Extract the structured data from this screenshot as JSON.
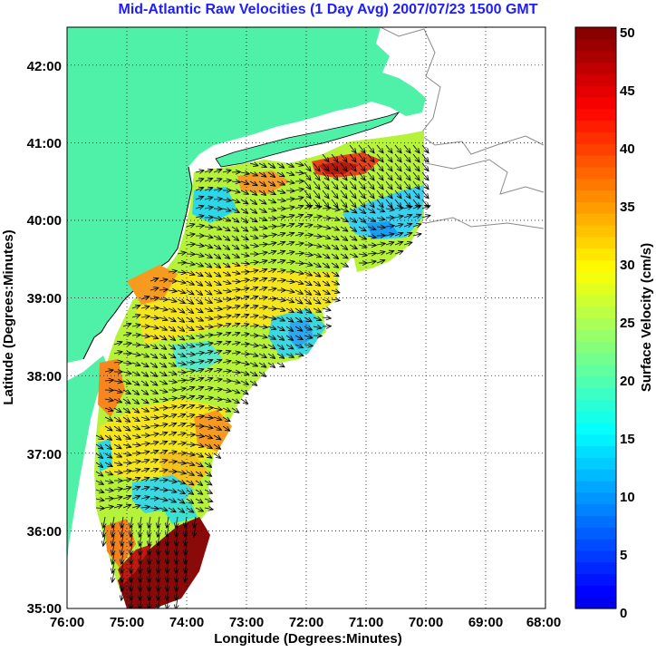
{
  "title": "Mid-Atlantic Raw Velocities (1 Day Avg) 2007/07/23 1500 GMT",
  "xaxis": {
    "label": "Longitude (Degrees:Minutes)",
    "ticks": [
      "76:00",
      "75:00",
      "74:00",
      "73:00",
      "72:00",
      "71:00",
      "70:00",
      "69:00",
      "68:00"
    ]
  },
  "yaxis": {
    "label": "Latitude (Degrees:Minutes)",
    "ticks": [
      "35:00",
      "36:00",
      "37:00",
      "38:00",
      "39:00",
      "40:00",
      "41:00",
      "42:00"
    ]
  },
  "colorbar": {
    "label": "Surface Velocity (cm/s)",
    "ticks": [
      "0",
      "5",
      "10",
      "15",
      "20",
      "25",
      "30",
      "35",
      "40",
      "45",
      "50"
    ],
    "range": [
      0,
      50
    ],
    "levels": 50
  },
  "colors": {
    "land": "#4ff0a8",
    "title": "#1d1dff",
    "coast": "#000000",
    "bathymetry": "#8a8a8a"
  }
}
